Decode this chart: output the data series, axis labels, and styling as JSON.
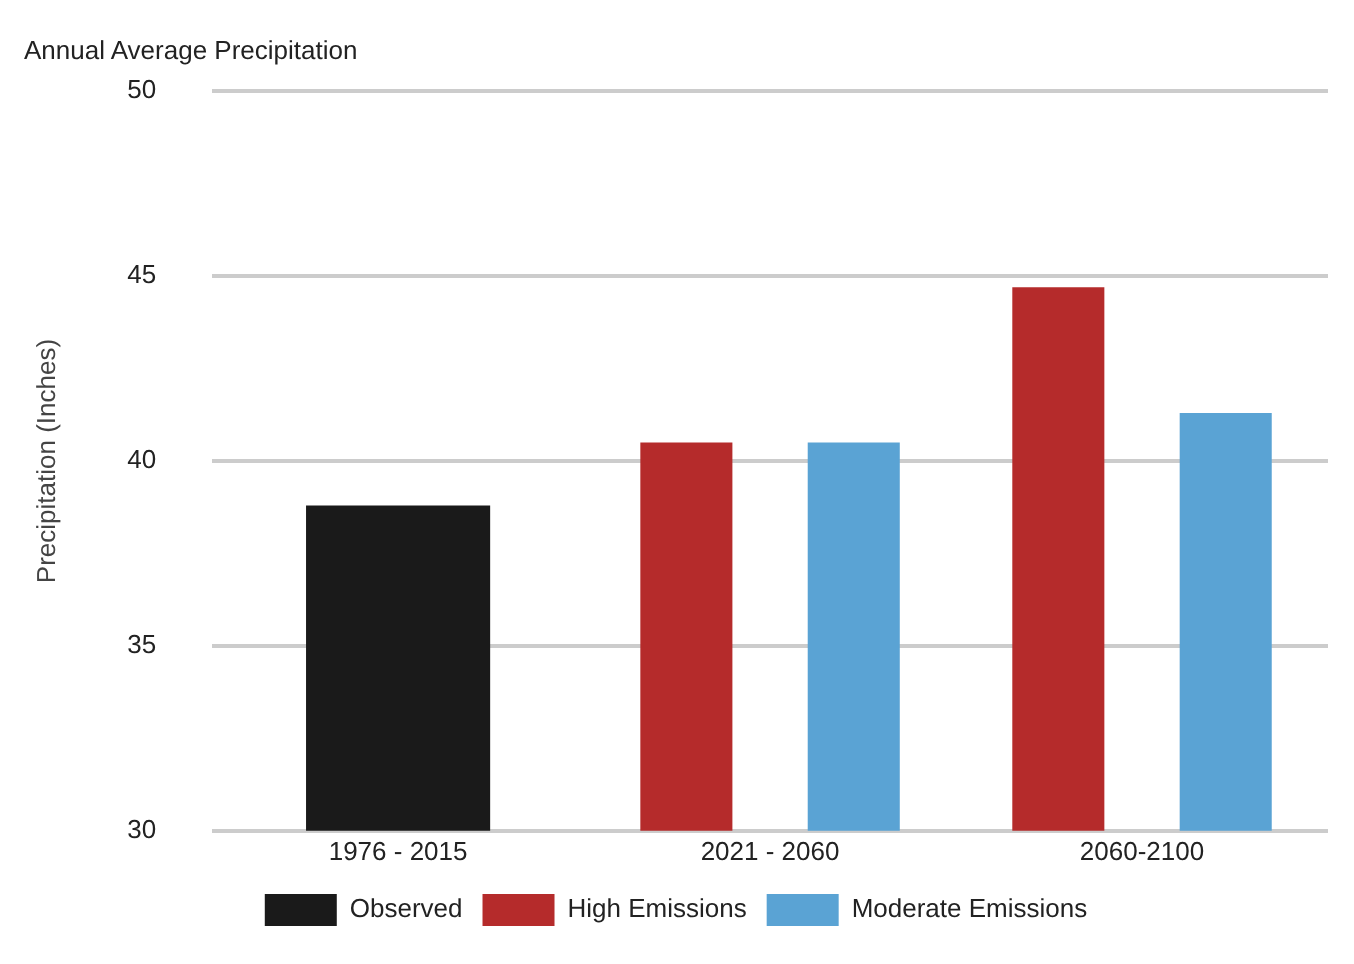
{
  "chart_data": {
    "type": "bar",
    "title": "Annual Average Precipitation",
    "ylabel": "Precipitation (Inches)",
    "categories": [
      "1976 - 2015",
      "2021 - 2060",
      "2060-2100"
    ],
    "series": [
      {
        "name": "Observed",
        "color": "#1a1a1a",
        "values": [
          38.8,
          null,
          null
        ]
      },
      {
        "name": "High Emissions",
        "color": "#b52b2b",
        "values": [
          null,
          40.5,
          44.7
        ]
      },
      {
        "name": "Moderate Emissions",
        "color": "#5aa3d4",
        "values": [
          null,
          40.5,
          41.3
        ]
      }
    ],
    "ylim": [
      30,
      50
    ],
    "yticks": [
      30,
      35,
      40,
      45,
      50
    ],
    "grid": "y",
    "legend": "bottom"
  }
}
